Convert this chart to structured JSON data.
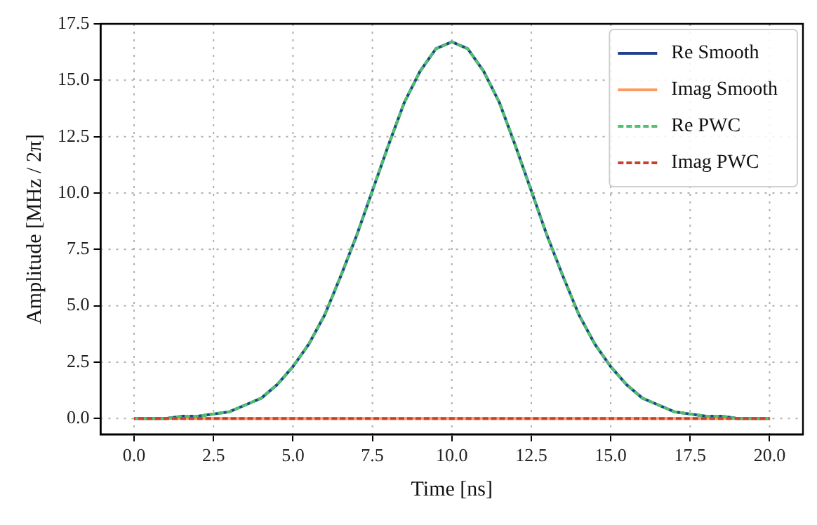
{
  "chart_data": {
    "type": "line",
    "xlabel": "Time [ns]",
    "ylabel": "Amplitude [MHz / 2π]",
    "x": [
      0,
      0.5,
      1,
      1.5,
      2,
      2.5,
      3,
      3.5,
      4,
      4.5,
      5,
      5.5,
      6,
      6.5,
      7,
      7.5,
      8,
      8.5,
      9,
      9.5,
      10,
      10.5,
      11,
      11.5,
      12,
      12.5,
      13,
      13.5,
      14,
      14.5,
      15,
      15.5,
      16,
      16.5,
      17,
      17.5,
      18,
      18.5,
      19,
      19.5,
      20
    ],
    "series": [
      {
        "name": "Re Smooth",
        "color": "#21408e",
        "line_style": "solid",
        "values": [
          0.0,
          0.0,
          0.0,
          0.1,
          0.1,
          0.2,
          0.3,
          0.6,
          0.9,
          1.5,
          2.3,
          3.3,
          4.6,
          6.3,
          8.1,
          10.1,
          12.1,
          14.0,
          15.4,
          16.4,
          16.7,
          16.4,
          15.4,
          14.0,
          12.1,
          10.1,
          8.1,
          6.3,
          4.6,
          3.3,
          2.3,
          1.5,
          0.9,
          0.6,
          0.3,
          0.2,
          0.1,
          0.1,
          0.0,
          0.0,
          0.0
        ]
      },
      {
        "name": "Imag Smooth",
        "color": "#ff9a5e",
        "line_style": "solid",
        "values": [
          0,
          0,
          0,
          0,
          0,
          0,
          0,
          0,
          0,
          0,
          0,
          0,
          0,
          0,
          0,
          0,
          0,
          0,
          0,
          0,
          0,
          0,
          0,
          0,
          0,
          0,
          0,
          0,
          0,
          0,
          0,
          0,
          0,
          0,
          0,
          0,
          0,
          0,
          0,
          0,
          0
        ]
      },
      {
        "name": "Re PWC",
        "color": "#4dc26b",
        "line_style": "dashed",
        "values": [
          0.0,
          0.0,
          0.0,
          0.1,
          0.1,
          0.2,
          0.3,
          0.6,
          0.9,
          1.5,
          2.3,
          3.3,
          4.6,
          6.3,
          8.1,
          10.1,
          12.1,
          14.0,
          15.4,
          16.4,
          16.7,
          16.4,
          15.4,
          14.0,
          12.1,
          10.1,
          8.1,
          6.3,
          4.6,
          3.3,
          2.3,
          1.5,
          0.9,
          0.6,
          0.3,
          0.2,
          0.1,
          0.1,
          0.0,
          0.0,
          0.0
        ]
      },
      {
        "name": "Imag PWC",
        "color": "#cc4030",
        "line_style": "dashed",
        "values": [
          0,
          0,
          0,
          0,
          0,
          0,
          0,
          0,
          0,
          0,
          0,
          0,
          0,
          0,
          0,
          0,
          0,
          0,
          0,
          0,
          0,
          0,
          0,
          0,
          0,
          0,
          0,
          0,
          0,
          0,
          0,
          0,
          0,
          0,
          0,
          0,
          0,
          0,
          0,
          0,
          0
        ]
      }
    ],
    "xlim": [
      -1.05,
      21.05
    ],
    "xticks": [
      {
        "value": 0,
        "label": "0.0"
      },
      {
        "value": 2.5,
        "label": "2.5"
      },
      {
        "value": 5,
        "label": "5.0"
      },
      {
        "value": 7.5,
        "label": "7.5"
      },
      {
        "value": 10,
        "label": "10.0"
      },
      {
        "value": 12.5,
        "label": "12.5"
      },
      {
        "value": 15,
        "label": "15.0"
      },
      {
        "value": 17.5,
        "label": "17.5"
      },
      {
        "value": 20,
        "label": "20.0"
      }
    ],
    "ylim": [
      -0.7,
      17.5
    ],
    "yticks": [
      {
        "value": 0,
        "label": "0.0"
      },
      {
        "value": 2.5,
        "label": "2.5"
      },
      {
        "value": 5,
        "label": "5.0"
      },
      {
        "value": 7.5,
        "label": "7.5"
      },
      {
        "value": 10,
        "label": "10.0"
      },
      {
        "value": 12.5,
        "label": "12.5"
      },
      {
        "value": 15,
        "label": "15.0"
      },
      {
        "value": 17.5,
        "label": "17.5"
      }
    ],
    "grid": true,
    "legend": "top right",
    "marker": "none"
  }
}
